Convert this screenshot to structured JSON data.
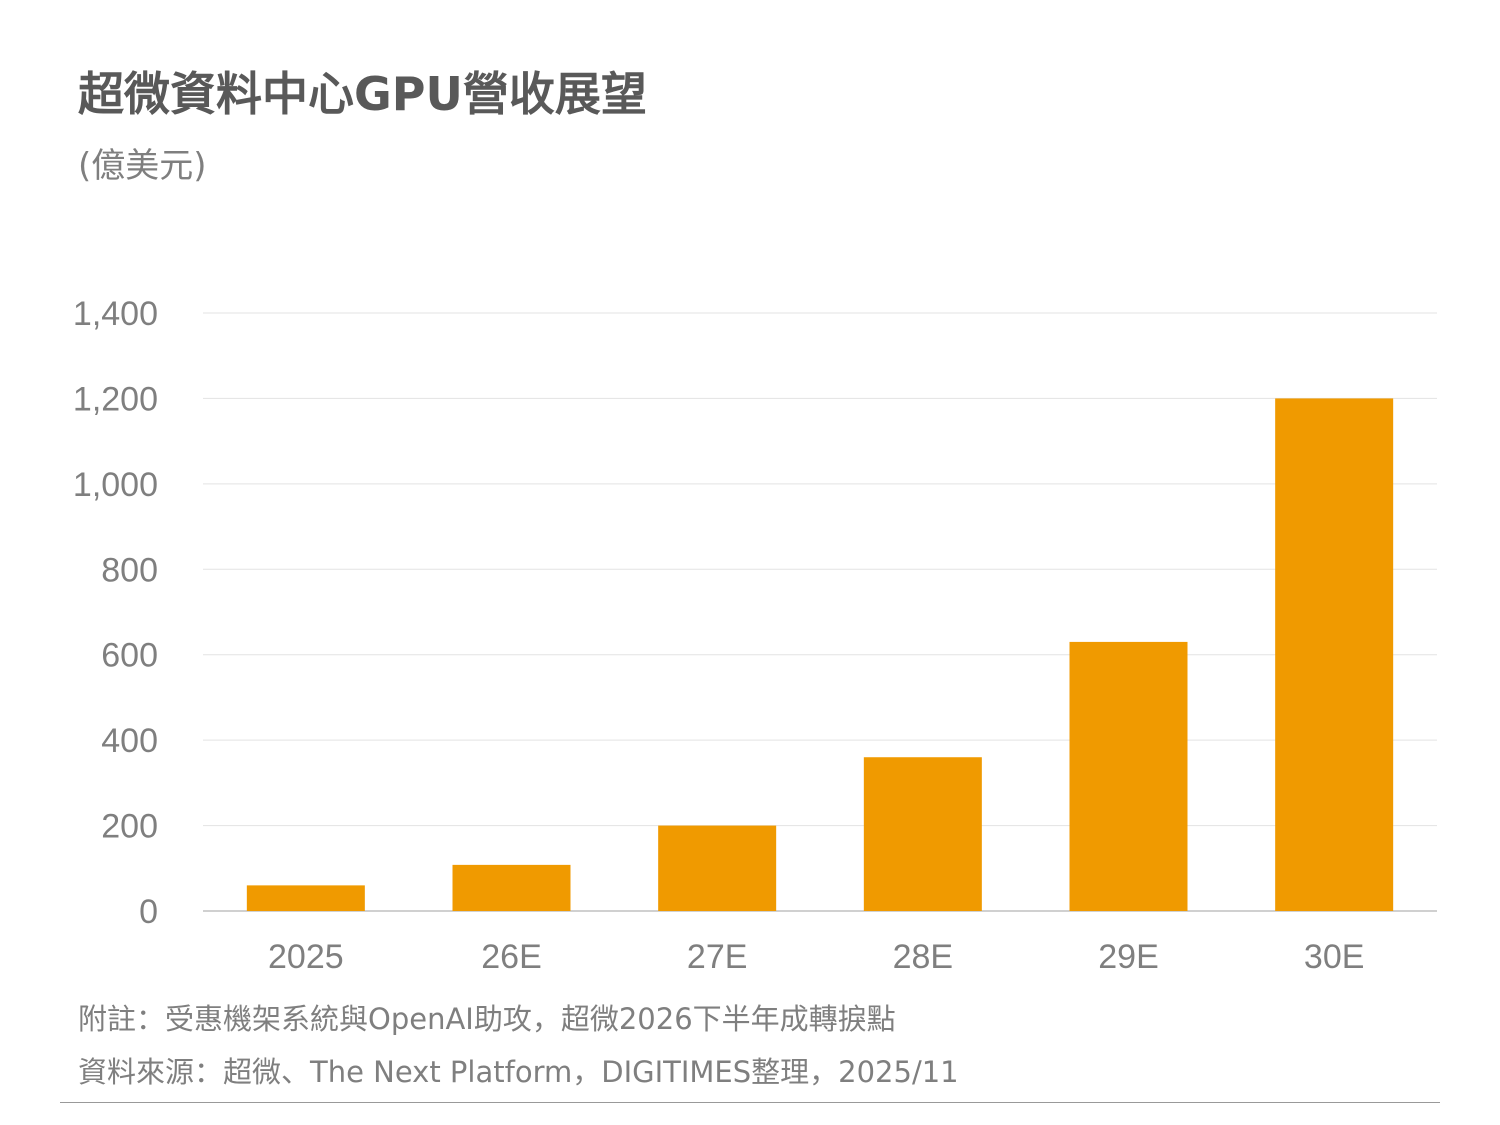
{
  "title": "超微資料中心GPU營收展望",
  "unit": "(億美元)",
  "notes": {
    "remark": "附註：受惠機架系統與OpenAI助攻，超微2026下半年成轉捩點",
    "source": "資料來源：超微、The Next Platform，DIGITIMES整理，2025/11"
  },
  "colors": {
    "bar": "#F09A00",
    "grid": "#e3e3e3",
    "tick_text": "#7f7f7f"
  },
  "chart_data": {
    "type": "bar",
    "title": "超微資料中心GPU營收展望",
    "ylabel": "(億美元)",
    "xlabel": "",
    "categories": [
      "2025",
      "26E",
      "27E",
      "28E",
      "29E",
      "30E"
    ],
    "values": [
      60,
      108,
      200,
      360,
      630,
      1200
    ],
    "ylim": [
      0,
      1400
    ],
    "yticks": [
      0,
      200,
      400,
      600,
      800,
      1000,
      1200,
      1400
    ],
    "ytick_labels": [
      "0",
      "200",
      "400",
      "600",
      "800",
      "1,000",
      "1,200",
      "1,400"
    ],
    "grid": true,
    "legend": "none"
  }
}
